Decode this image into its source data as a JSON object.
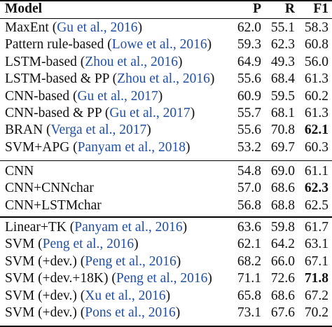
{
  "header": {
    "model": "Model",
    "p": "P",
    "r": "R",
    "f1": "F1"
  },
  "sections": [
    {
      "rows": [
        {
          "name": "MaxEnt (",
          "cite": "Gu et al., 2016",
          "close": ")",
          "p": "62.0",
          "r": "55.1",
          "f1": "58.3",
          "bold_f1": false
        },
        {
          "name": "Pattern rule-based (",
          "cite": "Lowe et al., 2016",
          "close": ")",
          "p": "59.3",
          "r": "62.3",
          "f1": "60.8",
          "bold_f1": false
        },
        {
          "name": "LSTM-based (",
          "cite": "Zhou et al., 2016",
          "close": ")",
          "p": "64.9",
          "r": "49.3",
          "f1": "56.0",
          "bold_f1": false
        },
        {
          "name": "LSTM-based & PP (",
          "cite": "Zhou et al., 2016",
          "close": ")",
          "p": "55.6",
          "r": "68.4",
          "f1": "61.3",
          "bold_f1": false
        },
        {
          "name": "CNN-based (",
          "cite": "Gu et al., 2017",
          "close": ")",
          "p": "60.9",
          "r": "59.5",
          "f1": "60.2",
          "bold_f1": false
        },
        {
          "name": "CNN-based & PP (",
          "cite": "Gu et al., 2017",
          "close": ")",
          "p": "55.7",
          "r": "68.1",
          "f1": "61.3",
          "bold_f1": false
        },
        {
          "name": "BRAN (",
          "cite": "Verga et al., 2017",
          "close": ")",
          "p": "55.6",
          "r": "70.8",
          "f1": "62.1",
          "bold_f1": true
        },
        {
          "name": "SVM+APG (",
          "cite": "Panyam et al., 2018",
          "close": ")",
          "p": "53.2",
          "r": "69.7",
          "f1": "60.3",
          "bold_f1": false
        }
      ]
    },
    {
      "rows": [
        {
          "name": "CNN",
          "cite": "",
          "close": "",
          "p": "54.8",
          "r": "69.0",
          "f1": "61.1",
          "bold_f1": false
        },
        {
          "name": "CNN+CNNchar",
          "cite": "",
          "close": "",
          "p": "57.0",
          "r": "68.6",
          "f1": "62.3",
          "bold_f1": true
        },
        {
          "name": "CNN+LSTMchar",
          "cite": "",
          "close": "",
          "p": "56.8",
          "r": "68.8",
          "f1": "62.5",
          "bold_f1": false
        }
      ]
    },
    {
      "rows": [
        {
          "name": "Linear+TK (",
          "cite": "Panyam et al., 2016",
          "close": ")",
          "p": "63.6",
          "r": "59.8",
          "f1": "61.7",
          "bold_f1": false
        },
        {
          "name": "SVM (",
          "cite": "Peng et al., 2016",
          "close": ")",
          "p": "62.1",
          "r": "64.2",
          "f1": "63.1",
          "bold_f1": false
        },
        {
          "name": "SVM (+dev.) (",
          "cite": "Peng et al., 2016",
          "close": ")",
          "p": "68.2",
          "r": "66.0",
          "f1": "67.1",
          "bold_f1": false
        },
        {
          "name": "SVM (+dev.+18K) (",
          "cite": "Peng et al., 2016",
          "close": ")",
          "p": "71.1",
          "r": "72.6",
          "f1": "71.8",
          "bold_f1": true
        },
        {
          "name": "SVM (+dev.) (",
          "cite": "Xu et al., 2016",
          "close": ")",
          "p": "65.8",
          "r": "68.6",
          "f1": "67.2",
          "bold_f1": false
        },
        {
          "name": "SVM (+dev.) (",
          "cite": "Pons et al., 2016",
          "close": ")",
          "p": "73.1",
          "r": "67.6",
          "f1": "70.2",
          "bold_f1": false
        }
      ]
    }
  ]
}
